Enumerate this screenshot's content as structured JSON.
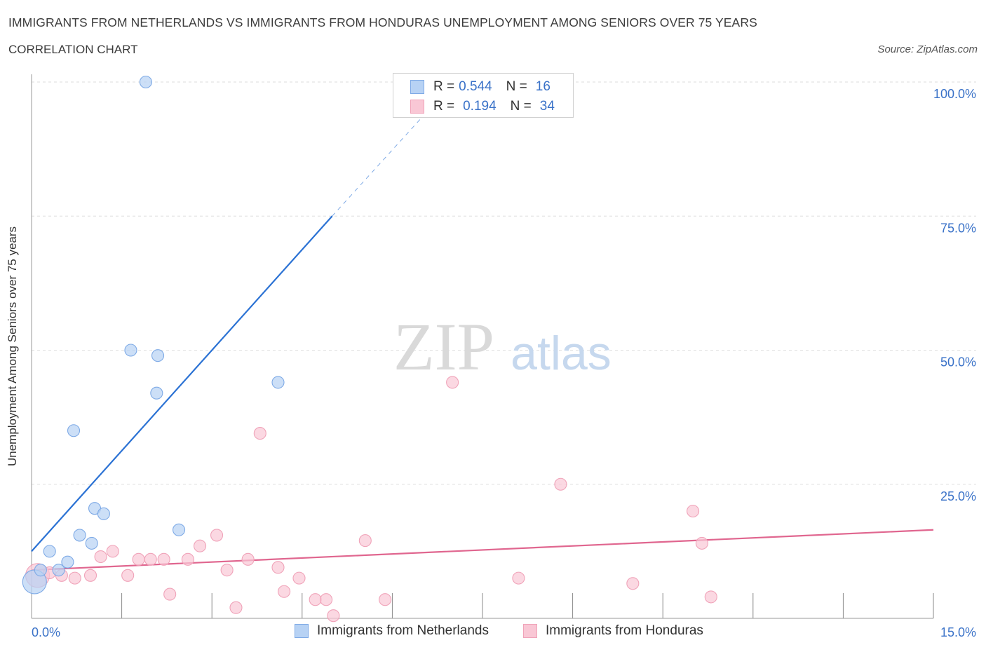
{
  "header": {
    "title": "IMMIGRANTS FROM NETHERLANDS VS IMMIGRANTS FROM HONDURAS UNEMPLOYMENT AMONG SENIORS OVER 75 YEARS",
    "subtitle": "CORRELATION CHART",
    "source": "Source: ZipAtlas.com"
  },
  "legend": {
    "rows": [
      {
        "r_label": "R =",
        "r_value": "0.544",
        "n_label": "N =",
        "n_value": "16"
      },
      {
        "r_label": "R =",
        "r_value": "0.194",
        "n_label": "N =",
        "n_value": "34"
      }
    ]
  },
  "colors": {
    "netherlands_fill": "#b7d2f4",
    "netherlands_stroke": "#7eaae6",
    "netherlands_line": "#2b72d4",
    "honduras_fill": "#f9c7d5",
    "honduras_stroke": "#f0a3b9",
    "honduras_line": "#e0668f",
    "axis_label": "#3a72c8",
    "grid": "#dedede"
  },
  "watermark": {
    "zip": "ZIP",
    "atlas": "atlas"
  },
  "chart_data": {
    "type": "scatter",
    "title": "IMMIGRANTS FROM NETHERLANDS VS IMMIGRANTS FROM HONDURAS UNEMPLOYMENT AMONG SENIORS OVER 75 YEARS",
    "xlabel": "",
    "ylabel": "Unemployment Among Seniors over 75 years",
    "xlim": [
      0,
      15
    ],
    "ylim": [
      0,
      100
    ],
    "x_tick_labels": [
      "0.0%",
      "15.0%"
    ],
    "y_ticks": [
      25,
      50,
      75,
      100
    ],
    "y_tick_labels": [
      "25.0%",
      "50.0%",
      "75.0%",
      "100.0%"
    ],
    "series": [
      {
        "name": "Immigrants from Netherlands",
        "r": 0.544,
        "n": 16,
        "points": [
          {
            "x": 0.05,
            "y": 6.8,
            "big": true
          },
          {
            "x": 0.15,
            "y": 9.0
          },
          {
            "x": 0.3,
            "y": 12.5
          },
          {
            "x": 0.45,
            "y": 9.0
          },
          {
            "x": 0.6,
            "y": 10.5
          },
          {
            "x": 0.7,
            "y": 35.0
          },
          {
            "x": 0.8,
            "y": 15.5
          },
          {
            "x": 1.0,
            "y": 14.0
          },
          {
            "x": 1.05,
            "y": 20.5
          },
          {
            "x": 1.2,
            "y": 19.5
          },
          {
            "x": 1.9,
            "y": 100.0
          },
          {
            "x": 1.65,
            "y": 50.0
          },
          {
            "x": 2.1,
            "y": 49.0
          },
          {
            "x": 2.08,
            "y": 42.0
          },
          {
            "x": 2.45,
            "y": 16.5
          },
          {
            "x": 4.1,
            "y": 44.0
          }
        ],
        "trend": {
          "x0": 0.0,
          "y0": 12.5,
          "x1": 5.0,
          "y1": 75.0,
          "dash_x1": 6.5,
          "dash_y1": 93.5
        }
      },
      {
        "name": "Immigrants from Honduras",
        "r": 0.194,
        "n": 34,
        "points": [
          {
            "x": 0.1,
            "y": 8.0,
            "big": true
          },
          {
            "x": 0.3,
            "y": 8.5
          },
          {
            "x": 0.5,
            "y": 8.0
          },
          {
            "x": 0.72,
            "y": 7.5
          },
          {
            "x": 0.98,
            "y": 8.0
          },
          {
            "x": 1.15,
            "y": 11.5
          },
          {
            "x": 1.35,
            "y": 12.5
          },
          {
            "x": 1.6,
            "y": 8.0
          },
          {
            "x": 1.78,
            "y": 11.0
          },
          {
            "x": 1.98,
            "y": 11.0
          },
          {
            "x": 2.2,
            "y": 11.0
          },
          {
            "x": 2.3,
            "y": 4.5
          },
          {
            "x": 2.6,
            "y": 11.0
          },
          {
            "x": 2.8,
            "y": 13.5
          },
          {
            "x": 3.08,
            "y": 15.5
          },
          {
            "x": 3.25,
            "y": 9.0
          },
          {
            "x": 3.4,
            "y": 2.0
          },
          {
            "x": 3.6,
            "y": 11.0
          },
          {
            "x": 3.8,
            "y": 34.5
          },
          {
            "x": 4.1,
            "y": 9.5
          },
          {
            "x": 4.2,
            "y": 5.0
          },
          {
            "x": 4.45,
            "y": 7.5
          },
          {
            "x": 4.72,
            "y": 3.5
          },
          {
            "x": 4.9,
            "y": 3.5
          },
          {
            "x": 5.02,
            "y": 0.5
          },
          {
            "x": 5.55,
            "y": 14.5
          },
          {
            "x": 5.88,
            "y": 3.5
          },
          {
            "x": 7.0,
            "y": 44.0
          },
          {
            "x": 8.1,
            "y": 7.5
          },
          {
            "x": 8.8,
            "y": 25.0
          },
          {
            "x": 10.0,
            "y": 6.5
          },
          {
            "x": 11.0,
            "y": 20.0
          },
          {
            "x": 11.15,
            "y": 14.0
          },
          {
            "x": 11.3,
            "y": 4.0
          }
        ],
        "trend": {
          "x0": 0.0,
          "y0": 9.0,
          "x1": 15.0,
          "y1": 16.5
        }
      }
    ]
  }
}
